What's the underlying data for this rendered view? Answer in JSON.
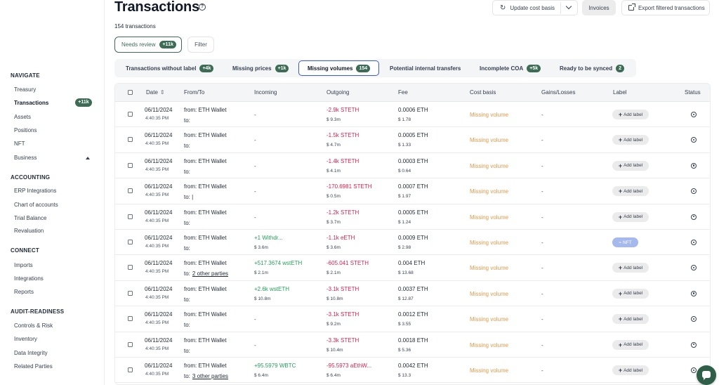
{
  "sidebar": {
    "sections": [
      {
        "title": "NAVIGATE",
        "items": [
          "Treasury",
          "Transactions",
          "Assets",
          "Positions",
          "NFT",
          "Business"
        ]
      },
      {
        "title": "ACCOUNTING",
        "items": [
          "ERP Integrations",
          "Chart of accounts",
          "Trial Balance",
          "Revaluation"
        ]
      },
      {
        "title": "CONNECT",
        "items": [
          "Imports",
          "Integrations",
          "Reports"
        ]
      },
      {
        "title": "AUDIT-READINESS",
        "items": [
          "Controls & Risk",
          "Inventory",
          "Data Integrity",
          "Related Parties"
        ]
      }
    ],
    "active_item": "Transactions",
    "active_badge": "+11k",
    "business_expanded": true
  },
  "header": {
    "title": "Transactions",
    "help_icon": "question-circle-icon",
    "count_text": "154 transactions",
    "update_cost_basis": "Update cost basis",
    "invoices": "Invoices",
    "export": "Export filtered transactions",
    "needs_review": "Needs review",
    "needs_review_badge": "+11k",
    "filter": "Filter"
  },
  "tabs": [
    {
      "label": "Transactions without label",
      "badge": "+4k"
    },
    {
      "label": "Missing prices",
      "badge": "+1k"
    },
    {
      "label": "Missing volumes",
      "badge": "154",
      "active": true
    },
    {
      "label": "Potential internal transfers",
      "badge": ""
    },
    {
      "label": "Incomplete COA",
      "badge": "+5k"
    },
    {
      "label": "Ready to be synced",
      "badge": "2"
    }
  ],
  "table": {
    "columns": [
      "Date",
      "From/To",
      "Incoming",
      "Outgoing",
      "Fee",
      "Cost basis",
      "Gains/Losses",
      "Label",
      "Status"
    ],
    "rows": [
      {
        "date": "06/11/2024",
        "time": "4:40:35 PM",
        "from": "from: ETH Wallet",
        "to": "to:",
        "to_link": "",
        "in": "-",
        "in_usd": "",
        "out": "-2.9k STETH",
        "out_usd": "$ 9.3m",
        "fee": "0.0006 ETH",
        "fee_usd": "$ 1.78",
        "cost": "Missing volume",
        "gains": "-",
        "label": "Add label"
      },
      {
        "date": "06/11/2024",
        "time": "4:40:35 PM",
        "from": "from: ETH Wallet",
        "to": "to:",
        "to_link": "",
        "in": "-",
        "in_usd": "",
        "out": "-1.5k STETH",
        "out_usd": "$ 4.7m",
        "fee": "0.0005 ETH",
        "fee_usd": "$ 1.33",
        "cost": "Missing volume",
        "gains": "-",
        "label": "Add label"
      },
      {
        "date": "06/11/2024",
        "time": "4:40:35 PM",
        "from": "from: ETH Wallet",
        "to": "to:",
        "to_link": "",
        "in": "-",
        "in_usd": "",
        "out": "-1.4k STETH",
        "out_usd": "$ 4.1m",
        "fee": "0.0003 ETH",
        "fee_usd": "$ 0.64",
        "cost": "Missing volume",
        "gains": "-",
        "label": "Add label"
      },
      {
        "date": "06/11/2024",
        "time": "4:40:35 PM",
        "from": "from: ETH Wallet",
        "to": "to: |",
        "to_link": "",
        "in": "-",
        "in_usd": "",
        "out": "-170.6981 STETH",
        "out_usd": "$ 0.5m",
        "fee": "0.0007 ETH",
        "fee_usd": "$ 1.97",
        "cost": "Missing volume",
        "gains": "-",
        "label": "Add label"
      },
      {
        "date": "06/11/2024",
        "time": "4:40:35 PM",
        "from": "from: ETH Wallet",
        "to": "to:",
        "to_link": "",
        "in": "-",
        "in_usd": "",
        "out": "-1.2k STETH",
        "out_usd": "$ 3.7m",
        "fee": "0.0005 ETH",
        "fee_usd": "$ 1.24",
        "cost": "Missing volume",
        "gains": "-",
        "label": "Add label"
      },
      {
        "date": "06/11/2024",
        "time": "4:40:35 PM",
        "from": "from: ETH Wallet",
        "to": "to:",
        "to_link": "",
        "in": "+1 Withdr...",
        "in_usd": "$ 3.6m",
        "out": "-1.1k eETH",
        "out_usd": "$ 3.6m",
        "fee": "0.0009 ETH",
        "fee_usd": "$ 2.98",
        "cost": "Missing volume",
        "gains": "-",
        "label": "NFT"
      },
      {
        "date": "06/11/2024",
        "time": "4:40:35 PM",
        "from": "from: ETH Wallet",
        "to": "to:",
        "to_link": "2 other parties",
        "in": "+517.3674 wstETH",
        "in_usd": "$ 2.1m",
        "out": "-605.041 STETH",
        "out_usd": "$ 2.1m",
        "fee": "0.004 ETH",
        "fee_usd": "$ 13.68",
        "cost": "Missing volume",
        "gains": "-",
        "label": "Add label"
      },
      {
        "date": "06/11/2024",
        "time": "4:40:35 PM",
        "from": "from: ETH Wallet",
        "to": "to:",
        "to_link": "",
        "in": "+2.6k wstETH",
        "in_usd": "$ 10.8m",
        "out": "-3.1k STETH",
        "out_usd": "$ 10.8m",
        "fee": "0.0037 ETH",
        "fee_usd": "$ 12.87",
        "cost": "Missing volume",
        "gains": "-",
        "label": "Add label"
      },
      {
        "date": "06/11/2024",
        "time": "4:40:35 PM",
        "from": "from: ETH Wallet",
        "to": "to:",
        "to_link": "",
        "in": "-",
        "in_usd": "",
        "out": "-3.1k STETH",
        "out_usd": "$ 9.2m",
        "fee": "0.0012 ETH",
        "fee_usd": "$ 3.55",
        "cost": "Missing volume",
        "gains": "-",
        "label": "Add label"
      },
      {
        "date": "06/11/2024",
        "time": "4:40:35 PM",
        "from": "from: ETH Wallet",
        "to": "to:",
        "to_link": "",
        "in": "-",
        "in_usd": "",
        "out": "-3.3k STETH",
        "out_usd": "$ 10.4m",
        "fee": "0.0018 ETH",
        "fee_usd": "$ 5.36",
        "cost": "Missing volume",
        "gains": "-",
        "label": "Add label"
      },
      {
        "date": "06/11/2024",
        "time": "4:40:35 PM",
        "from": "from: ETH Wallet",
        "to": "to:",
        "to_link": "3 other parties",
        "in": "+95.5979 WBTC",
        "in_usd": "$ 6.4m",
        "out": "-95.5973 aEthW...",
        "out_usd": "$ 6.4m",
        "fee": "0.0042 ETH",
        "fee_usd": "$ 13.3",
        "cost": "Missing volume",
        "gains": "-",
        "label": "Add label"
      }
    ]
  },
  "colors": {
    "accent_green": "#3d6b56",
    "incoming": "#22a05a",
    "outgoing": "#e11d48",
    "missing": "#e39a4b",
    "active_tab_border": "#3b5bdb",
    "nft_chip": "#a5b9ec"
  }
}
